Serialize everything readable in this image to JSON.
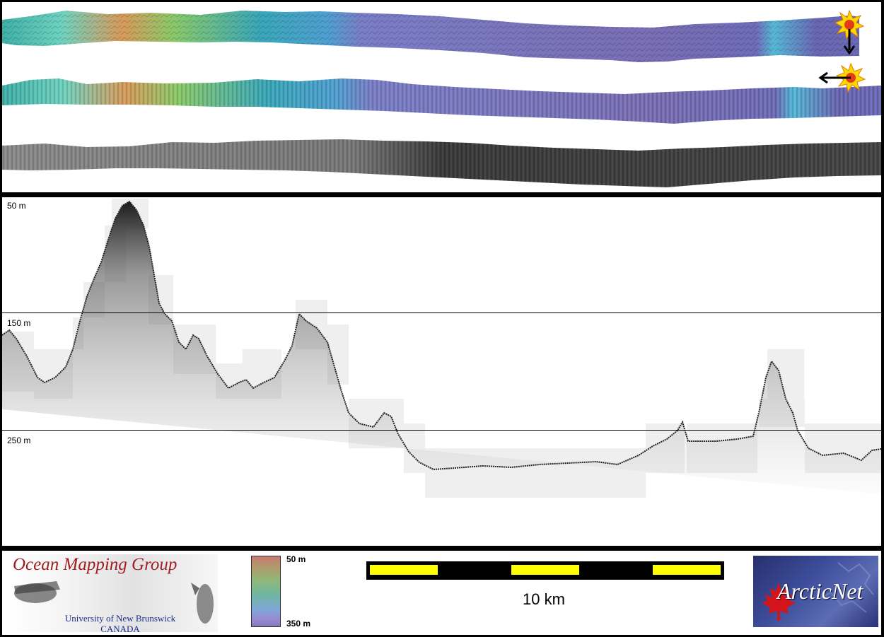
{
  "profile": {
    "depth_labels": [
      "50 m",
      "150 m",
      "250 m"
    ]
  },
  "footer": {
    "logo_title": "Ocean Mapping Group",
    "logo_university": "University of New Brunswick",
    "logo_country": "CANADA",
    "colorbar_top": "50 m",
    "colorbar_bottom": "350 m",
    "scale_label": "10 km",
    "partner_logo": "ArcticNet"
  },
  "colors": {
    "scale_bar_yellow": "#ffff00",
    "scale_bar_black": "#000000",
    "omg_red": "#a01d24",
    "omg_blue": "#1b2b8a"
  },
  "icons": [
    "sun-icon",
    "arrow-down-icon",
    "arrow-left-icon",
    "maple-leaf-icon"
  ]
}
